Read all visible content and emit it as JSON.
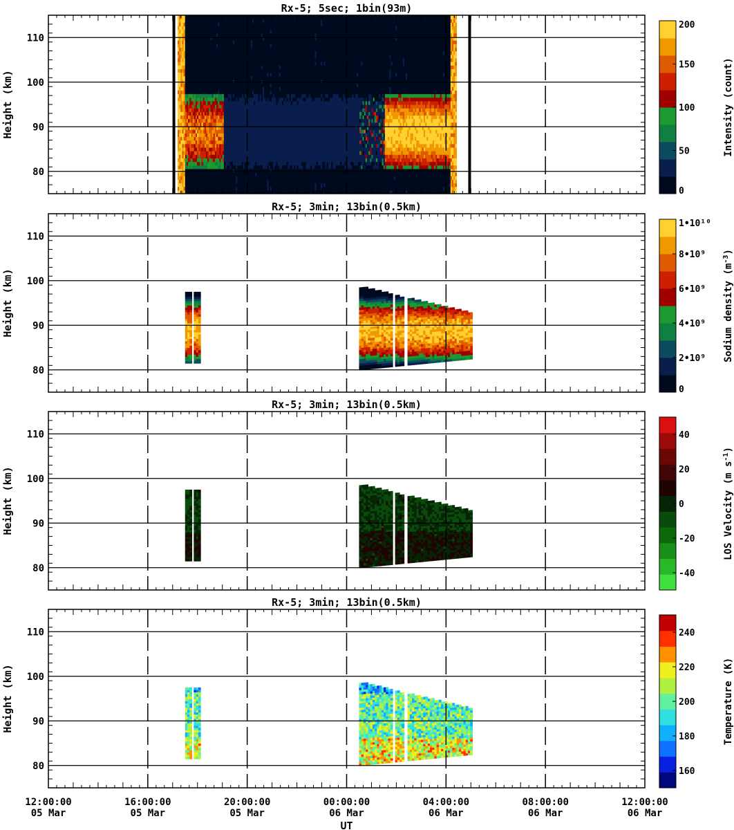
{
  "chart_data": {
    "type": "heatmap",
    "x_axis": {
      "label": "UT",
      "range_hours_from_start": [
        0,
        24
      ],
      "ticks": [
        {
          "hours": 0,
          "time": "12:00:00",
          "date": "05 Mar"
        },
        {
          "hours": 4,
          "time": "16:00:00",
          "date": "05 Mar"
        },
        {
          "hours": 8,
          "time": "20:00:00",
          "date": "05 Mar"
        },
        {
          "hours": 12,
          "time": "00:00:00",
          "date": "06 Mar"
        },
        {
          "hours": 16,
          "time": "04:00:00",
          "date": "06 Mar"
        },
        {
          "hours": 20,
          "time": "08:00:00",
          "date": "06 Mar"
        },
        {
          "hours": 24,
          "time": "12:00:00",
          "date": "06 Mar"
        }
      ],
      "dashed_gridlines": true
    },
    "panels": [
      {
        "id": "intensity",
        "title": "Rx-5;  5sec; 1bin(93m)",
        "ylabel": "Height (km)",
        "ylim": [
          75,
          115
        ],
        "yticks": [
          80,
          90,
          100,
          110
        ],
        "colorbar": {
          "label": "Intensity (count)",
          "range": [
            0,
            200
          ],
          "tick_values": [
            0,
            50,
            100,
            150,
            200
          ],
          "tick_labels": [
            "0",
            "50",
            "100",
            "150",
            "200"
          ],
          "colors": [
            "#000a1e",
            "#0a1e4e",
            "#0c4a60",
            "#108040",
            "#1a9a30",
            "#a00000",
            "#cc2000",
            "#e05a00",
            "#f09800",
            "#ffd030"
          ]
        },
        "observation_windows_hours": [
          [
            5.2,
            16.4
          ]
        ],
        "marker_lines_hours": [
          5.05,
          16.95
        ],
        "layer_km": [
          80,
          97
        ]
      },
      {
        "id": "sodium_density",
        "title": "Rx-5; 3min; 13bin(0.5km)",
        "ylabel": "Height (km)",
        "ylim": [
          75,
          115
        ],
        "yticks": [
          80,
          90,
          100,
          110
        ],
        "colorbar": {
          "label": "Sodium density (m^-3)",
          "range": [
            0,
            10000000000
          ],
          "tick_values": [
            0,
            2000000000,
            4000000000,
            6000000000,
            8000000000,
            10000000000
          ],
          "tick_labels": [
            "0",
            "2•10⁹",
            "4•10⁹",
            "6•10⁹",
            "8•10⁹",
            "1•10¹⁰"
          ],
          "colors": [
            "#000a1e",
            "#0a1e4e",
            "#0c4a60",
            "#108040",
            "#1a9a30",
            "#a00000",
            "#cc2000",
            "#e05a00",
            "#f09800",
            "#ffd030"
          ]
        },
        "observation_windows_hours": [
          [
            5.5,
            5.7
          ],
          [
            5.85,
            6.1
          ],
          [
            12.5,
            13.8
          ],
          [
            13.95,
            14.3
          ],
          [
            14.45,
            17.05
          ]
        ]
      },
      {
        "id": "los_velocity",
        "title": "Rx-5; 3min; 13bin(0.5km)",
        "ylabel": "Height (km)",
        "ylim": [
          75,
          115
        ],
        "yticks": [
          80,
          90,
          100,
          110
        ],
        "colorbar": {
          "label": "LOS Velocity (m s^-1)",
          "range": [
            -50,
            50
          ],
          "tick_values": [
            -40,
            -20,
            0,
            20,
            40
          ],
          "tick_labels": [
            "-40",
            "-20",
            "0",
            "20",
            "40"
          ],
          "colors": [
            "#40e040",
            "#28b828",
            "#189018",
            "#0c6a0c",
            "#0a4a0a",
            "#062406",
            "#200404",
            "#420606",
            "#6a0808",
            "#9c0a0a",
            "#d81010"
          ]
        },
        "observation_windows_hours": [
          [
            5.5,
            5.7
          ],
          [
            5.85,
            6.1
          ],
          [
            12.5,
            13.8
          ],
          [
            13.95,
            14.3
          ],
          [
            14.45,
            17.05
          ]
        ]
      },
      {
        "id": "temperature",
        "title": "Rx-5; 3min; 13bin(0.5km)",
        "ylabel": "Height (km)",
        "ylim": [
          75,
          115
        ],
        "yticks": [
          80,
          90,
          100,
          110
        ],
        "colorbar": {
          "label": "Temperature (K)",
          "range": [
            150,
            250
          ],
          "tick_values": [
            160,
            180,
            200,
            220,
            240
          ],
          "tick_labels": [
            "160",
            "180",
            "200",
            "220",
            "240"
          ],
          "colors": [
            "#000880",
            "#0820e0",
            "#1070ff",
            "#10b0ff",
            "#30e0e0",
            "#60f0a0",
            "#b0f040",
            "#f0f020",
            "#ff9000",
            "#ff3000",
            "#c00000"
          ]
        },
        "observation_windows_hours": [
          [
            5.5,
            5.7
          ],
          [
            5.85,
            6.1
          ],
          [
            12.5,
            13.8
          ],
          [
            13.95,
            14.3
          ],
          [
            14.45,
            17.05
          ]
        ]
      }
    ]
  }
}
